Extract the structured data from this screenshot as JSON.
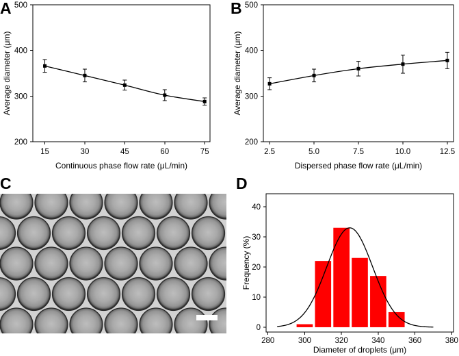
{
  "colors": {
    "axis": "#000000",
    "series_line": "#000000",
    "marker": "#000000",
    "bar_fill": "#ff0000",
    "fit_line": "#000000",
    "scale_bar": "#ffffff",
    "background": "#ffffff"
  },
  "micrograph": {
    "panel_label": "C"
  },
  "chart_data": [
    {
      "panel_label": "A",
      "type": "line",
      "x": [
        15,
        30,
        45,
        60,
        75
      ],
      "values": [
        366,
        345,
        324,
        302,
        288
      ],
      "errors": [
        14,
        14,
        11,
        12,
        8
      ],
      "xlabel": "Continuous phase flow rate (μL/min)",
      "ylabel": "Average diameter (μm)",
      "xlim": [
        10.5,
        77
      ],
      "ylim": [
        200,
        500
      ],
      "xticks": [
        15,
        30,
        45,
        60,
        75
      ],
      "xtick_labels": [
        "15",
        "30",
        "45",
        "60",
        "75"
      ],
      "yticks": [
        200,
        300,
        400,
        500
      ],
      "ytick_labels": [
        "200",
        "300",
        "400",
        "500"
      ],
      "grid": false
    },
    {
      "panel_label": "B",
      "type": "line",
      "x": [
        2.5,
        5.0,
        7.5,
        10.0,
        12.5
      ],
      "values": [
        327,
        345,
        360,
        370,
        378
      ],
      "errors": [
        13,
        14,
        16,
        20,
        18
      ],
      "xlabel": "Dispersed phase flow rate (μL/min)",
      "ylabel": "Average diameter (μm)",
      "xlim": [
        2.15,
        12.85
      ],
      "ylim": [
        200,
        500
      ],
      "xticks": [
        2.5,
        5.0,
        7.5,
        10.0,
        12.5
      ],
      "xtick_labels": [
        "2.5",
        "5.0",
        "7.5",
        "10.0",
        "12.5"
      ],
      "yticks": [
        200,
        300,
        400,
        500
      ],
      "ytick_labels": [
        "200",
        "300",
        "400",
        "500"
      ],
      "grid": false
    },
    {
      "panel_label": "D",
      "type": "bar",
      "categories": [
        300,
        310,
        320,
        330,
        340,
        350
      ],
      "values": [
        1,
        22,
        33,
        23,
        17,
        5
      ],
      "bin_width": 10,
      "fit_gaussian": {
        "mu": 324.5,
        "sigma": 12.5,
        "amplitude": 33,
        "x_range": [
          285,
          370
        ]
      },
      "xlabel": "Diameter of droplets (μm)",
      "ylabel": "Frequency (%)",
      "xlim": [
        279,
        381
      ],
      "ylim": [
        -1.6,
        44.3
      ],
      "xticks": [
        280,
        300,
        320,
        340,
        360,
        380
      ],
      "xtick_labels": [
        "280",
        "300",
        "320",
        "340",
        "360",
        "380"
      ],
      "yticks": [
        0,
        10,
        20,
        30,
        40
      ],
      "ytick_labels": [
        "0",
        "10",
        "20",
        "30",
        "40"
      ],
      "grid": false
    }
  ]
}
